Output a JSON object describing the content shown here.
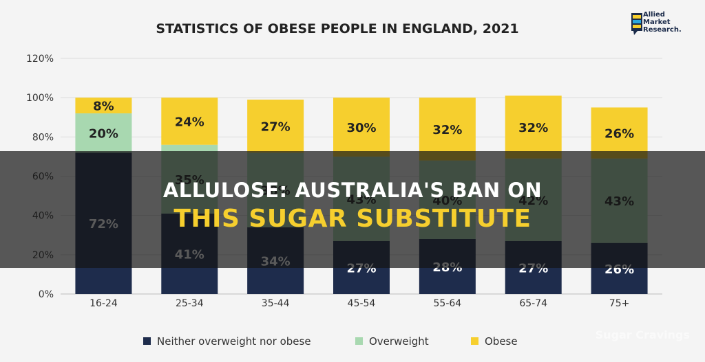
{
  "chart_data": {
    "type": "bar",
    "stacked": true,
    "title": "STATISTICS OF OBESE PEOPLE IN ENGLAND, 2021",
    "categories": [
      "16-24",
      "25-34",
      "35-44",
      "45-54",
      "55-64",
      "65-74",
      "75+"
    ],
    "series": [
      {
        "name": "Neither overweight nor obese",
        "color": "#1e2c4c",
        "values": [
          72,
          41,
          34,
          27,
          28,
          27,
          26
        ]
      },
      {
        "name": "Overweight",
        "color": "#a8d8b0",
        "values": [
          20,
          35,
          38,
          43,
          40,
          42,
          43
        ]
      },
      {
        "name": "Obese",
        "color": "#f6cf2e",
        "values": [
          8,
          24,
          27,
          30,
          32,
          32,
          26
        ]
      }
    ],
    "data_labels": [
      [
        "72%",
        "41%",
        "34%",
        "27%",
        "28%",
        "27%",
        "26%"
      ],
      [
        "20%",
        "35%",
        "38%",
        "43%",
        "40%",
        "42%",
        "43%"
      ],
      [
        "8%",
        "24%",
        "27%",
        "30%",
        "32%",
        "32%",
        "26%"
      ]
    ],
    "ylim": [
      0,
      120
    ],
    "yticks": [
      "0%",
      "20%",
      "40%",
      "60%",
      "80%",
      "100%",
      "120%"
    ],
    "grid": true,
    "legend_position": "bottom"
  },
  "logo": {
    "line1": "Allied",
    "line2": "Market",
    "line3": "Research."
  },
  "overlay": {
    "line1": "ALLULOSE: AUSTRALIA'S BAN ON",
    "line2": "THIS SUGAR SUBSTITUTE"
  },
  "watermark": "Sugar Cravings"
}
